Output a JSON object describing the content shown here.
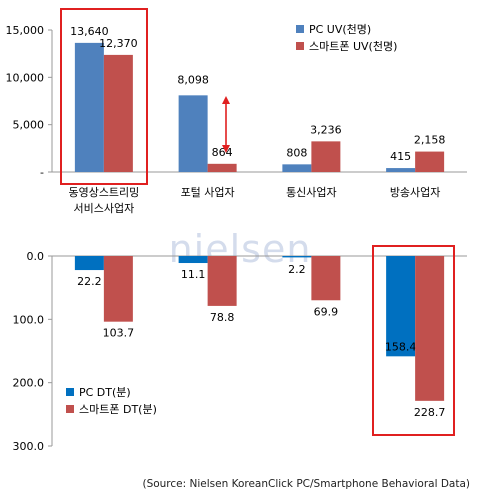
{
  "chart_data": [
    {
      "type": "bar",
      "categories": [
        "동영상스트리밍\n서비스사업자",
        "포털 사업자",
        "통신사업자",
        "방송사업자"
      ],
      "series": [
        {
          "name": "PC UV(천명)",
          "values": [
            13640,
            8098,
            808,
            415
          ],
          "labels": [
            "13,640",
            "8,098",
            "808",
            "415"
          ],
          "color": "#4f81bd"
        },
        {
          "name": "스마트폰 UV(천명)",
          "values": [
            12370,
            864,
            3236,
            2158
          ],
          "labels": [
            "12,370",
            "864",
            "3,236",
            "2,158"
          ],
          "color": "#c0504d"
        }
      ],
      "ylim": [
        0,
        15000
      ],
      "yticks": [
        0,
        5000,
        10000,
        15000
      ],
      "ytick_labels": [
        "-",
        "5,000",
        "10,000",
        "15,000"
      ],
      "legend": "top-right",
      "grid": false,
      "highlight_category": 0
    },
    {
      "type": "bar",
      "categories": [
        "동영상스트리밍\n서비스사업자",
        "포털 사업자",
        "통신사업자",
        "방송사업자"
      ],
      "series": [
        {
          "name": "PC DT(분)",
          "values": [
            22.2,
            11.1,
            2.2,
            158.4
          ],
          "labels": [
            "22.2",
            "11.1",
            "2.2",
            "158.4"
          ],
          "color": "#0070c0"
        },
        {
          "name": "스마트폰 DT(분)",
          "values": [
            103.7,
            78.8,
            69.9,
            228.7
          ],
          "labels": [
            "103.7",
            "78.8",
            "69.9",
            "228.7"
          ],
          "color": "#c0504d"
        }
      ],
      "ylim": [
        0,
        300
      ],
      "y_inverted": true,
      "yticks": [
        0,
        100,
        200,
        300
      ],
      "ytick_labels": [
        "0.0",
        "100.0",
        "200.0",
        "300.0"
      ],
      "legend": "bottom-left",
      "grid": false,
      "highlight_category": 3
    }
  ],
  "watermark": "nielsen",
  "source_note": "(Source: Nielsen KoreanClick PC/Smartphone Behavioral Data)",
  "colors": {
    "highlight_box": "#e02020",
    "arrow": "#e02020",
    "axis": "#999999"
  }
}
